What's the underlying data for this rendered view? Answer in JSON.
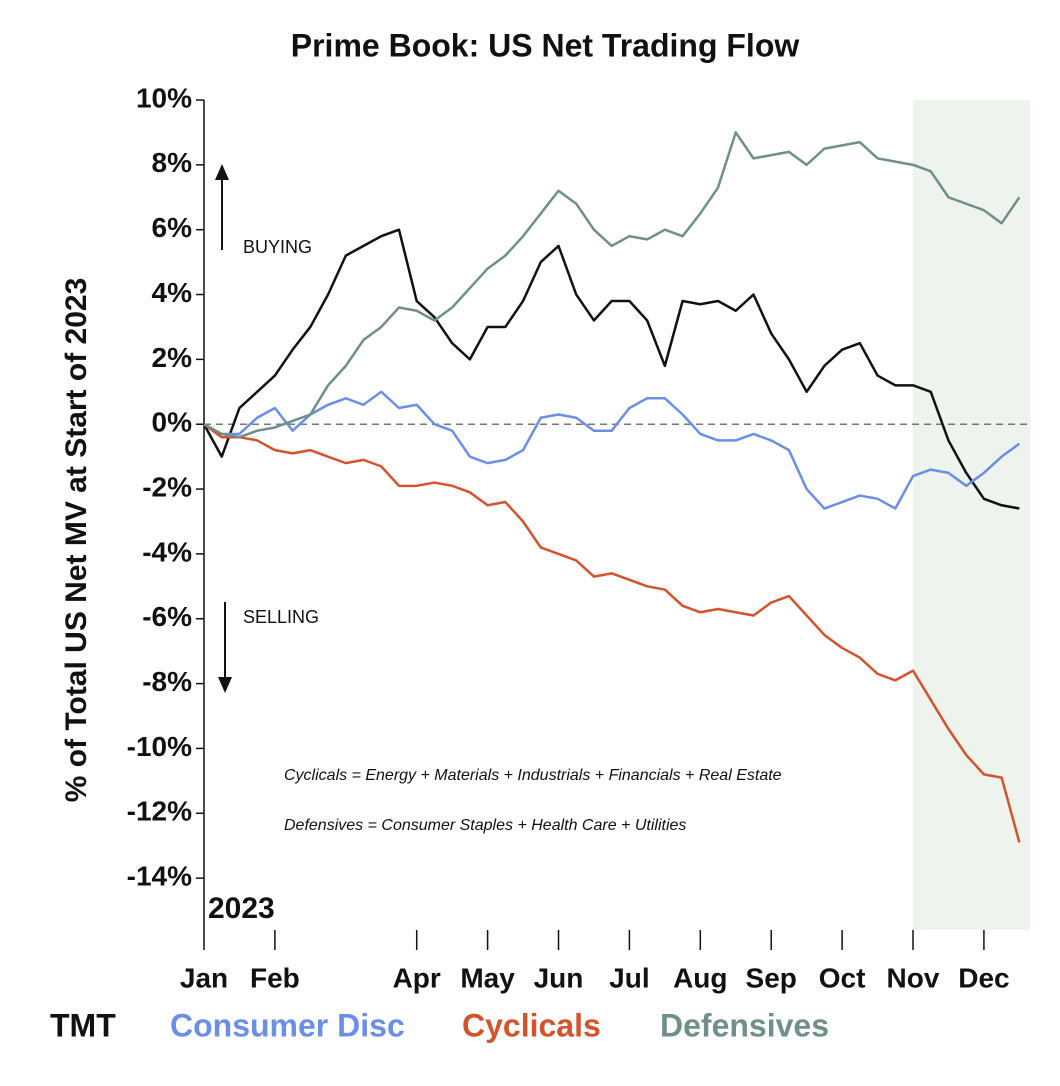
{
  "chart_data": {
    "type": "line",
    "title": "Prime Book: US Net Trading Flow",
    "y_label": "% of Total US Net MV at Start of 2023",
    "annotations": [
      "BUYING",
      "SELLING",
      "2023",
      "Cyclicals = Energy + Materials + Industrials + Financials + Real Estate",
      "Defensives = Consumer Staples + Health Care + Utilities"
    ],
    "x": [
      0,
      0.25,
      0.5,
      0.75,
      1,
      1.25,
      1.5,
      1.75,
      2,
      2.25,
      2.5,
      2.75,
      3,
      3.25,
      3.5,
      3.75,
      4,
      4.25,
      4.5,
      4.75,
      5,
      5.25,
      5.5,
      5.75,
      6,
      6.25,
      6.5,
      6.75,
      7,
      7.25,
      7.5,
      7.75,
      8,
      8.25,
      8.5,
      8.75,
      9,
      9.25,
      9.5,
      9.75,
      10,
      10.25,
      10.5,
      10.75,
      11,
      11.25,
      11.5
    ],
    "xlim": [
      0,
      11.65
    ],
    "xticks": [
      {
        "value": 0,
        "label": "Jan"
      },
      {
        "value": 1,
        "label": "Feb"
      },
      {
        "value": 3,
        "label": "Apr"
      },
      {
        "value": 4,
        "label": "May"
      },
      {
        "value": 5,
        "label": "Jun"
      },
      {
        "value": 6,
        "label": "Jul"
      },
      {
        "value": 7,
        "label": "Aug"
      },
      {
        "value": 8,
        "label": "Sep"
      },
      {
        "value": 9,
        "label": "Oct"
      },
      {
        "value": 10,
        "label": "Nov"
      },
      {
        "value": 11,
        "label": "Dec"
      }
    ],
    "ylim": [
      -15.6,
      10
    ],
    "yticks": [
      {
        "value": 10,
        "label": "10%"
      },
      {
        "value": 8,
        "label": "8%"
      },
      {
        "value": 6,
        "label": "6%"
      },
      {
        "value": 4,
        "label": "4%"
      },
      {
        "value": 2,
        "label": "2%"
      },
      {
        "value": 0,
        "label": "0%"
      },
      {
        "value": -2,
        "label": "-2%"
      },
      {
        "value": -4,
        "label": "-4%"
      },
      {
        "value": -6,
        "label": "-6%"
      },
      {
        "value": -8,
        "label": "-8%"
      },
      {
        "value": -10,
        "label": "-10%"
      },
      {
        "value": -12,
        "label": "-12%"
      },
      {
        "value": -14,
        "label": "-14%"
      }
    ],
    "reference_line": 0,
    "shaded_region": [
      10,
      11.65
    ],
    "shade_color": "#eef3ed",
    "series": [
      {
        "name": "TMT",
        "color": "#111111",
        "values": [
          0,
          -1.0,
          0.5,
          1.0,
          1.5,
          2.3,
          3.0,
          4.0,
          5.2,
          5.5,
          5.8,
          6.0,
          3.8,
          3.3,
          2.5,
          2.0,
          3.0,
          3.0,
          3.8,
          5.0,
          5.5,
          4.0,
          3.2,
          3.8,
          3.8,
          3.2,
          1.8,
          3.8,
          3.7,
          3.8,
          3.5,
          4.0,
          2.8,
          2.0,
          1.0,
          1.8,
          2.3,
          2.5,
          1.5,
          1.2,
          1.2,
          1.0,
          -0.5,
          -1.5,
          -2.3,
          -2.5,
          -2.6
        ]
      },
      {
        "name": "Consumer Disc",
        "color": "#6b8fe8",
        "values": [
          0,
          -0.3,
          -0.3,
          0.2,
          0.5,
          -0.2,
          0.3,
          0.6,
          0.8,
          0.6,
          1.0,
          0.5,
          0.6,
          0,
          -0.2,
          -1.0,
          -1.2,
          -1.1,
          -0.8,
          0.2,
          0.3,
          0.2,
          -0.2,
          -0.2,
          0.5,
          0.8,
          0.8,
          0.3,
          -0.3,
          -0.5,
          -0.5,
          -0.3,
          -0.5,
          -0.8,
          -2.0,
          -2.6,
          -2.4,
          -2.2,
          -2.3,
          -2.6,
          -1.6,
          -1.4,
          -1.5,
          -1.9,
          -1.5,
          -1.0,
          -0.6
        ]
      },
      {
        "name": "Cyclicals",
        "color": "#d4532b",
        "values": [
          0,
          -0.4,
          -0.4,
          -0.5,
          -0.8,
          -0.9,
          -0.8,
          -1.0,
          -1.2,
          -1.1,
          -1.3,
          -1.9,
          -1.9,
          -1.8,
          -1.9,
          -2.1,
          -2.5,
          -2.4,
          -3.0,
          -3.8,
          -4.0,
          -4.2,
          -4.7,
          -4.6,
          -4.8,
          -5.0,
          -5.1,
          -5.6,
          -5.8,
          -5.7,
          -5.8,
          -5.9,
          -5.5,
          -5.3,
          -5.9,
          -6.5,
          -6.9,
          -7.2,
          -7.7,
          -7.9,
          -7.6,
          -8.5,
          -9.4,
          -10.2,
          -10.8,
          -10.9,
          -12.9
        ]
      },
      {
        "name": "Defensives",
        "color": "#6f8f8a",
        "values": [
          0,
          -0.3,
          -0.4,
          -0.2,
          -0.1,
          0.1,
          0.3,
          1.2,
          1.8,
          2.6,
          3.0,
          3.6,
          3.5,
          3.2,
          3.6,
          4.2,
          4.8,
          5.2,
          5.8,
          6.5,
          7.2,
          6.8,
          6.0,
          5.5,
          5.8,
          5.7,
          6.0,
          5.8,
          6.5,
          7.3,
          9.0,
          8.2,
          8.3,
          8.4,
          8.0,
          8.5,
          8.6,
          8.7,
          8.2,
          8.1,
          8.0,
          7.8,
          7.0,
          6.8,
          6.6,
          6.2,
          7.0
        ]
      }
    ]
  }
}
